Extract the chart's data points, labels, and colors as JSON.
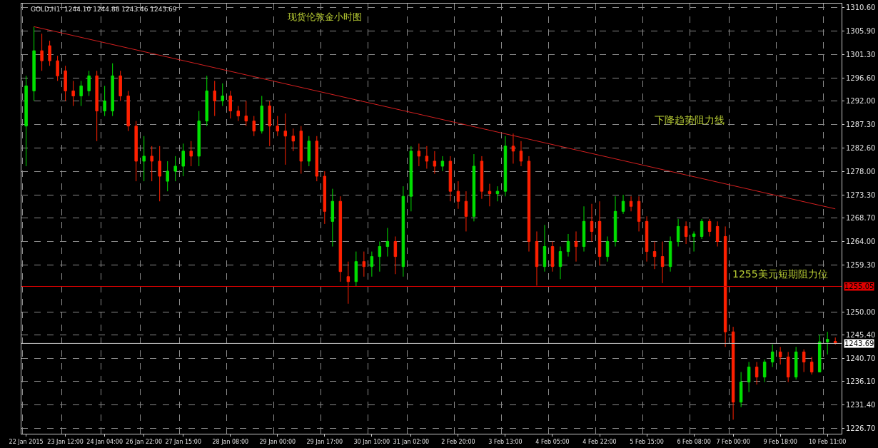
{
  "chart_data": {
    "type": "candlestick",
    "title": "现货伦敦金小时图",
    "subtitle": "GOLD,H1  1244.10 1244.88 1243.46 1243.69",
    "categories": [
      "22 Jan 2015",
      null,
      null,
      null,
      null,
      "23 Jan 12:00",
      null,
      null,
      null,
      null,
      "24 Jan 04:00",
      null,
      null,
      null,
      null,
      "26 Jan 22:00",
      null,
      null,
      null,
      null,
      "27 Jan 15:00",
      null,
      null,
      null,
      null,
      null,
      "28 Jan 08:00",
      null,
      null,
      null,
      null,
      null,
      "29 Jan 00:00",
      null,
      null,
      null,
      null,
      null,
      "29 Jan 17:00",
      null,
      null,
      null,
      null,
      null,
      "30 Jan 10:00",
      null,
      null,
      null,
      null,
      "31 Jan 02:00",
      null,
      null,
      null,
      null,
      null,
      "2 Feb 20:00",
      null,
      null,
      null,
      null,
      null,
      "3 Feb 13:00",
      null,
      null,
      null,
      null,
      null,
      "4 Feb 05:00",
      null,
      null,
      null,
      null,
      null,
      "4 Feb 22:00",
      null,
      null,
      null,
      null,
      null,
      "5 Feb 15:00",
      null,
      null,
      null,
      null,
      null,
      "6 Feb 08:00",
      null,
      null,
      null,
      null,
      "7 Feb 00:00",
      null,
      null,
      null,
      null,
      null,
      "9 Feb 18:00",
      null,
      null,
      null,
      null,
      null,
      "10 Feb 11:00",
      null
    ],
    "ohlc": [
      [
        1287,
        1297,
        1279,
        1295
      ],
      [
        1294,
        1306.8,
        1292,
        1302
      ],
      [
        1302,
        1305.4,
        1298,
        1300
      ],
      [
        1303,
        1304,
        1299,
        1300
      ],
      [
        1300,
        1301,
        1296,
        1297
      ],
      [
        1298,
        1299,
        1292,
        1294
      ],
      [
        1294,
        1296,
        1291,
        1293
      ],
      [
        1293,
        1296,
        1291,
        1295
      ],
      [
        1294,
        1298,
        1293,
        1297
      ],
      [
        1297,
        1298,
        1284,
        1290
      ],
      [
        1290,
        1295,
        1289,
        1292
      ],
      [
        1290,
        1299.5,
        1289,
        1297
      ],
      [
        1297,
        1298,
        1292,
        1293
      ],
      [
        1293,
        1294,
        1286,
        1287
      ],
      [
        1287,
        1288,
        1276,
        1280
      ],
      [
        1280,
        1285,
        1276,
        1281
      ],
      [
        1281,
        1283,
        1276,
        1280
      ],
      [
        1280,
        1283,
        1272,
        1277
      ],
      [
        1276,
        1280,
        1274,
        1278
      ],
      [
        1278,
        1281,
        1276,
        1279
      ],
      [
        1279,
        1283.5,
        1277,
        1282
      ],
      [
        1282,
        1284,
        1279,
        1281
      ],
      [
        1281,
        1290,
        1279,
        1288
      ],
      [
        1288,
        1297,
        1287,
        1294
      ],
      [
        1294,
        1296,
        1289,
        1292
      ],
      [
        1292,
        1295.5,
        1291,
        1293
      ],
      [
        1293,
        1294,
        1288.5,
        1290
      ],
      [
        1290,
        1291,
        1288,
        1289
      ],
      [
        1289,
        1292,
        1287,
        1288
      ],
      [
        1288,
        1289,
        1285,
        1286
      ],
      [
        1286,
        1293,
        1285.5,
        1291
      ],
      [
        1291,
        1292,
        1283,
        1287
      ],
      [
        1287,
        1289,
        1285,
        1286
      ],
      [
        1286,
        1289.5,
        1279.3,
        1285
      ],
      [
        1285,
        1286.5,
        1282,
        1284
      ],
      [
        1286,
        1287,
        1277.5,
        1280
      ],
      [
        1280,
        1285,
        1279,
        1284
      ],
      [
        1284,
        1285,
        1276,
        1277
      ],
      [
        1277,
        1278,
        1267.5,
        1270
      ],
      [
        1268,
        1274.5,
        1263,
        1272
      ],
      [
        1272,
        1273,
        1256,
        1258
      ],
      [
        1257,
        1260,
        1251.6,
        1256
      ],
      [
        1256,
        1262,
        1255,
        1260
      ],
      [
        1260,
        1262,
        1257,
        1259
      ],
      [
        1259,
        1262,
        1257,
        1261
      ],
      [
        1261,
        1264,
        1258,
        1263
      ],
      [
        1263,
        1266.7,
        1261,
        1264
      ],
      [
        1264,
        1265,
        1257.5,
        1261
      ],
      [
        1259,
        1275,
        1257,
        1273
      ],
      [
        1273,
        1283,
        1270,
        1282
      ],
      [
        1282,
        1283.5,
        1279,
        1281
      ],
      [
        1281,
        1283,
        1278.5,
        1280
      ],
      [
        1280,
        1282,
        1277.5,
        1279
      ],
      [
        1279,
        1281,
        1278,
        1280
      ],
      [
        1280,
        1281,
        1272,
        1274
      ],
      [
        1274,
        1276,
        1270.5,
        1272
      ],
      [
        1272,
        1274,
        1266,
        1269
      ],
      [
        1269,
        1281.4,
        1268,
        1279
      ],
      [
        1280,
        1281,
        1272.5,
        1274
      ],
      [
        1274,
        1275.5,
        1271,
        1273.5
      ],
      [
        1273.5,
        1275,
        1272,
        1274
      ],
      [
        1274,
        1285,
        1273,
        1283
      ],
      [
        1283,
        1285.5,
        1279.5,
        1282
      ],
      [
        1282,
        1284,
        1279,
        1280
      ],
      [
        1280,
        1281,
        1262,
        1264
      ],
      [
        1264,
        1266,
        1255.2,
        1259
      ],
      [
        1259,
        1267.3,
        1258,
        1263
      ],
      [
        1263,
        1264,
        1258,
        1259
      ],
      [
        1259,
        1263,
        1256.5,
        1262
      ],
      [
        1262,
        1265.5,
        1261,
        1264
      ],
      [
        1264,
        1266,
        1260,
        1263
      ],
      [
        1263,
        1271,
        1262,
        1268
      ],
      [
        1268,
        1271.5,
        1264,
        1266
      ],
      [
        1268,
        1272,
        1259.2,
        1261
      ],
      [
        1261,
        1265,
        1260,
        1264
      ],
      [
        1264,
        1273,
        1263,
        1270
      ],
      [
        1270,
        1273.3,
        1269.5,
        1272
      ],
      [
        1272,
        1273,
        1270,
        1271
      ],
      [
        1272,
        1273,
        1266,
        1268
      ],
      [
        1268,
        1269,
        1260,
        1262
      ],
      [
        1262,
        1264,
        1258.5,
        1261
      ],
      [
        1261,
        1264,
        1255.7,
        1259
      ],
      [
        1259,
        1265,
        1258,
        1264
      ],
      [
        1264,
        1268.5,
        1263,
        1267
      ],
      [
        1267,
        1268,
        1263.5,
        1265
      ],
      [
        1265,
        1266,
        1262,
        1265.5
      ],
      [
        1265,
        1268.5,
        1264.5,
        1268
      ],
      [
        1268,
        1268.5,
        1265,
        1266
      ],
      [
        1267,
        1268,
        1263,
        1264
      ],
      [
        1265,
        1267,
        1243,
        1246
      ],
      [
        1246,
        1247,
        1228.5,
        1232
      ],
      [
        1232,
        1238,
        1231,
        1236
      ],
      [
        1236,
        1240,
        1234,
        1239
      ],
      [
        1239,
        1240,
        1235.5,
        1237
      ],
      [
        1237,
        1240.5,
        1236,
        1240
      ],
      [
        1240,
        1243.5,
        1239,
        1242
      ],
      [
        1242,
        1243,
        1239.5,
        1241
      ],
      [
        1241,
        1242,
        1236,
        1237
      ],
      [
        1237,
        1243,
        1236.5,
        1242
      ],
      [
        1242,
        1242.5,
        1238,
        1240
      ],
      [
        1240,
        1241,
        1237.5,
        1238
      ],
      [
        1238,
        1245.4,
        1238,
        1244
      ],
      [
        1244,
        1246,
        1241.5,
        1244.5
      ],
      [
        1244.1,
        1244.88,
        1243.46,
        1243.69
      ]
    ],
    "series": [
      {
        "type": "line",
        "color": "#d42020",
        "values": [
          null,
          1306.8,
          null,
          null,
          null,
          null,
          null,
          null,
          null,
          null,
          null,
          null,
          null,
          null,
          null,
          null,
          null,
          null,
          null,
          null,
          null,
          null,
          null,
          null,
          null,
          null,
          null,
          null,
          null,
          null,
          null,
          null,
          null,
          null,
          null,
          null,
          null,
          null,
          null,
          null,
          null,
          null,
          null,
          null,
          null,
          null,
          null,
          null,
          null,
          null,
          null,
          null,
          null,
          null,
          null,
          null,
          null,
          null,
          null,
          null,
          null,
          null,
          null,
          null,
          null,
          null,
          null,
          null,
          null,
          null,
          null,
          null,
          null,
          null,
          null,
          null,
          null,
          null,
          null,
          null,
          null,
          null,
          null,
          null,
          null,
          null,
          null,
          null,
          null,
          null,
          null,
          null,
          null,
          null,
          null,
          null,
          null,
          null,
          null,
          null,
          null,
          null,
          null,
          1270.5
        ]
      }
    ],
    "ylim": [
      1225.7,
      1311.4
    ],
    "yticks": [
      {
        "value": 1310.6,
        "label": "1310.60"
      },
      {
        "value": 1305.9,
        "label": "1305.90"
      },
      {
        "value": 1301.3,
        "label": "1301.30"
      },
      {
        "value": 1296.6,
        "label": "1296.60"
      },
      {
        "value": 1292,
        "label": "1292.00"
      },
      {
        "value": 1287.3,
        "label": "1287.30"
      },
      {
        "value": 1282.6,
        "label": "1282.60"
      },
      {
        "value": 1278,
        "label": "1278.00"
      },
      {
        "value": 1273.3,
        "label": "1273.30"
      },
      {
        "value": 1268.7,
        "label": "1268.70"
      },
      {
        "value": 1264,
        "label": "1264.00"
      },
      {
        "value": 1259.3,
        "label": "1259.30"
      },
      {
        "value": 1250,
        "label": "1250.00"
      },
      {
        "value": 1245.4,
        "label": "1245.40"
      },
      {
        "value": 1240.7,
        "label": "1240.70"
      },
      {
        "value": 1236.1,
        "label": "1236.10"
      },
      {
        "value": 1231.4,
        "label": "1231.40"
      },
      {
        "value": 1226.7,
        "label": "1226.70"
      }
    ],
    "ref_lines": [
      {
        "axis": "y",
        "value": 1255.05,
        "label": "1255.05",
        "color": "#e00000"
      },
      {
        "axis": "y",
        "value": 1243.69,
        "label": "1243.69",
        "color": "#c0c0c0"
      }
    ],
    "annotations": [
      "下降趋势阻力线",
      "1255美元短期阻力位"
    ],
    "grid": true
  }
}
